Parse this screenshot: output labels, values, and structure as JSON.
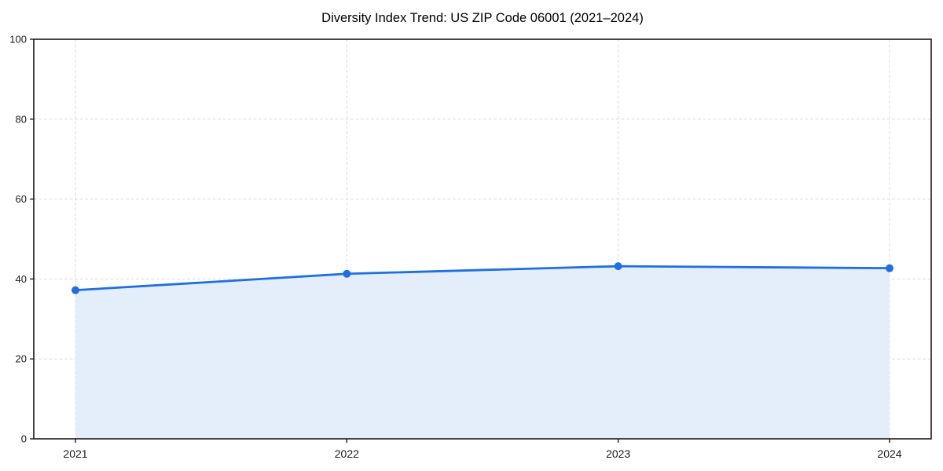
{
  "page": {
    "background_color": "#ffffff"
  },
  "chart_data": {
    "type": "area",
    "title": "Diversity Index Trend: US ZIP Code 06001 (2021–2024)",
    "categories": [
      "2021",
      "2022",
      "2023",
      "2024"
    ],
    "series": [
      {
        "name": "Diversity Index",
        "values": [
          37.2,
          41.3,
          43.2,
          42.7
        ]
      }
    ],
    "xlabel": "",
    "ylabel": "",
    "ylim": [
      0,
      100
    ],
    "yticks": [
      0,
      20,
      40,
      60,
      80,
      100
    ],
    "grid": "dashed",
    "legend_position": "none",
    "line_color": "#1f6fe0",
    "marker_color": "#1f6fe0",
    "fill_color": "#e4eefb",
    "grid_color": "#dcdcdc",
    "axis_color": "#1a1a1a",
    "tick_label_color": "#1a1a1a",
    "title_color": "#000000"
  }
}
